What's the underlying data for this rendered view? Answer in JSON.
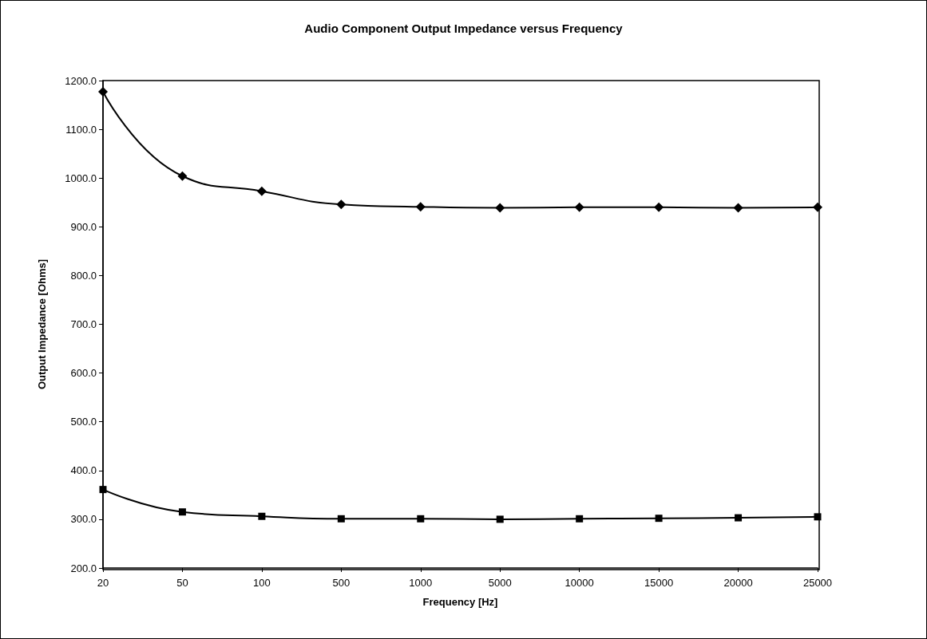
{
  "chart_data": {
    "type": "line",
    "title": "Audio Component Output Impedance versus Frequency",
    "xlabel": "Frequency [Hz]",
    "ylabel": "Output Impedance [Ohms]",
    "categories": [
      "20",
      "50",
      "100",
      "500",
      "1000",
      "5000",
      "10000",
      "15000",
      "20000",
      "25000"
    ],
    "series": [
      {
        "color": "#000000",
        "marker": "diamond",
        "values": [
          1177,
          1004,
          973,
          946,
          941,
          939,
          940,
          940,
          939,
          940
        ]
      },
      {
        "color": "#000000",
        "marker": "square",
        "values": [
          361,
          315,
          306,
          301,
          301,
          300,
          301,
          302,
          303,
          305
        ]
      }
    ],
    "ylim": [
      200,
      1200
    ],
    "yticks": [
      {
        "value": 200,
        "label": "200.0"
      },
      {
        "value": 300,
        "label": "300.0"
      },
      {
        "value": 400,
        "label": "400.0"
      },
      {
        "value": 500,
        "label": "500.0"
      },
      {
        "value": 600,
        "label": "600.0"
      },
      {
        "value": 700,
        "label": "700.0"
      },
      {
        "value": 800,
        "label": "800.0"
      },
      {
        "value": 900,
        "label": "900.0"
      },
      {
        "value": 1000,
        "label": "1000.0"
      },
      {
        "value": 1100,
        "label": "1100.0"
      },
      {
        "value": 1200,
        "label": "1200.0"
      }
    ],
    "grid": false,
    "line_style": "solid"
  }
}
